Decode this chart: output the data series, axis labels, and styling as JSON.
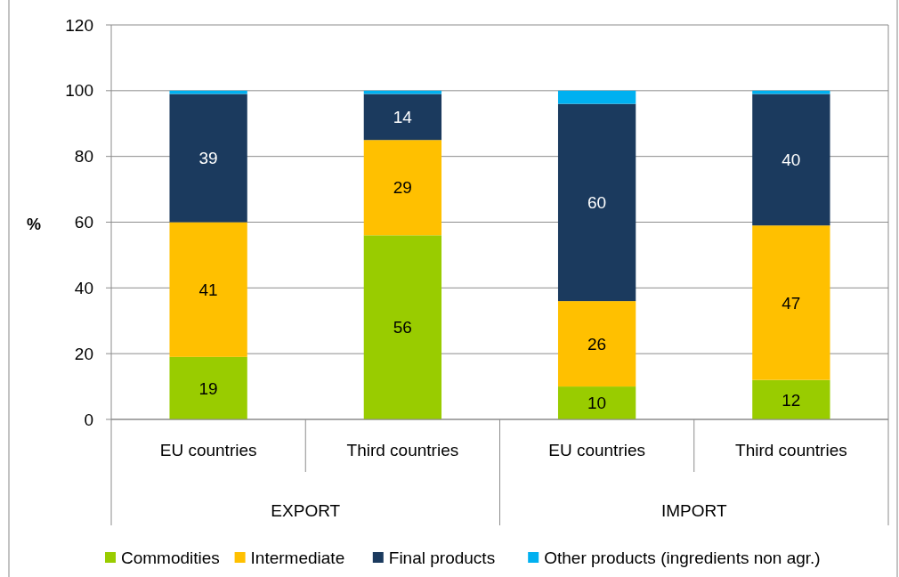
{
  "chart_data": {
    "type": "bar",
    "stacked": true,
    "ylabel": "%",
    "categories": [
      "EU countries",
      "Third countries",
      "EU countries",
      "Third countries"
    ],
    "annotations": [
      "EXPORT",
      "IMPORT"
    ],
    "series": [
      {
        "name": "Commodities",
        "color": "#99cc00",
        "values": [
          19,
          56,
          10,
          12
        ],
        "value_labels": [
          "19",
          "56",
          "10",
          "12"
        ]
      },
      {
        "name": "Intermediate",
        "color": "#ffc000",
        "values": [
          41,
          29,
          26,
          47
        ],
        "value_labels": [
          "41",
          "29",
          "26",
          "47"
        ]
      },
      {
        "name": "Final products",
        "color": "#1b3a5e",
        "values": [
          39,
          14,
          60,
          40
        ],
        "value_labels": [
          "39",
          "14",
          "60",
          "40"
        ]
      },
      {
        "name": "Other products (ingredients non agr.)",
        "color": "#00b0f0",
        "values": [
          1,
          1,
          4,
          1
        ],
        "value_labels": [
          null,
          null,
          null,
          null
        ]
      }
    ],
    "ylim": [
      0,
      120
    ],
    "yticks": [
      0,
      20,
      40,
      60,
      80,
      100,
      120
    ],
    "grid": "y",
    "legend": "bottom"
  }
}
